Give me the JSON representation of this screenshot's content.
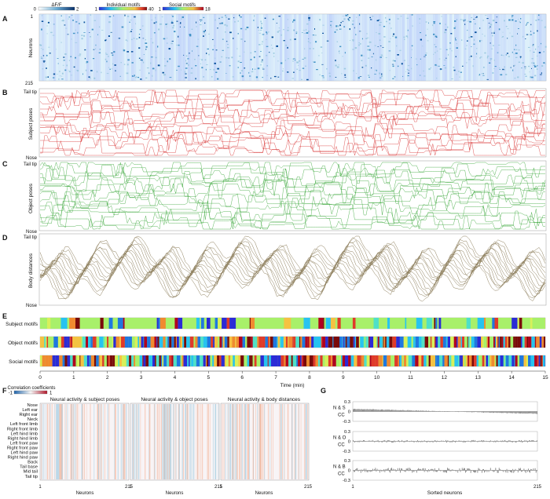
{
  "chart_data": [
    {
      "id": "A",
      "type": "heatmap",
      "panel_label": "A",
      "ylabel": "Neurons",
      "y_ticks": [
        "1",
        "215"
      ],
      "colorbar": {
        "label": "ΔF/F",
        "min": "0",
        "max": "2"
      }
    },
    {
      "id": "legends",
      "type": "table",
      "individual_colorbar": {
        "label": "Individual motifs",
        "min": "1",
        "max": "40"
      },
      "social_colorbar": {
        "label": "Social motifs",
        "min": "1",
        "max": "18"
      }
    },
    {
      "id": "B",
      "type": "line",
      "panel_label": "B",
      "ylabel": "Subject poses",
      "y_top": "Tail tip",
      "y_bottom": "Nose",
      "color": "#d62728"
    },
    {
      "id": "C",
      "type": "line",
      "panel_label": "C",
      "ylabel": "Object poses",
      "y_top": "Tail tip",
      "y_bottom": "Nose",
      "color": "#2ca02c"
    },
    {
      "id": "D",
      "type": "line",
      "panel_label": "D",
      "ylabel": "Body distances",
      "y_top": "Tail tip",
      "y_bottom": "Nose",
      "color": "#8c7d5a"
    },
    {
      "id": "E",
      "type": "heatmap",
      "panel_label": "E",
      "rows": [
        "Subject motifs",
        "Object motifs",
        "Social motifs"
      ],
      "xlabel": "Time (min)",
      "xlim": [
        0,
        15
      ],
      "x_ticks": [
        "0",
        "1",
        "2",
        "3",
        "4",
        "5",
        "6",
        "7",
        "8",
        "9",
        "10",
        "11",
        "12",
        "13",
        "14",
        "15"
      ]
    },
    {
      "id": "F",
      "type": "heatmap",
      "panel_label": "F",
      "colorbar": {
        "label": "Correlation coefficients",
        "min": "-1",
        "max": "1"
      },
      "titles": [
        "Neural activity & subject poses",
        "Neural activity & object poses",
        "Neural activity & body distances"
      ],
      "rows": [
        "Nose",
        "Left ear",
        "Right ear",
        "Neck",
        "Left front limb",
        "Right front limb",
        "Left hind limb",
        "Right hind limb",
        "Left front paw",
        "Right front paw",
        "Left hind paw",
        "Right hind paw",
        "Back",
        "Tail base",
        "Mid tail",
        "Tail tip"
      ],
      "xlabel": "Neurons",
      "x_ticks": [
        "1",
        "215"
      ]
    },
    {
      "id": "G",
      "type": "bar",
      "panel_label": "G",
      "subplots": [
        {
          "label1": "N & S",
          "label2": "CC",
          "y_ticks": [
            "0.3",
            "0",
            "-0.3"
          ],
          "ylim": [
            -0.3,
            0.3
          ]
        },
        {
          "label1": "N & O",
          "label2": "CC",
          "y_ticks": [
            "0.3",
            "0",
            "-0.3"
          ],
          "ylim": [
            -0.3,
            0.3
          ]
        },
        {
          "label1": "N & B",
          "label2": "CC",
          "y_ticks": [
            "0.3",
            "0",
            "-0.3"
          ],
          "ylim": [
            -0.3,
            0.3
          ]
        }
      ],
      "xlabel": "Sorted neurons",
      "x_ticks": [
        "1",
        "215"
      ]
    }
  ]
}
